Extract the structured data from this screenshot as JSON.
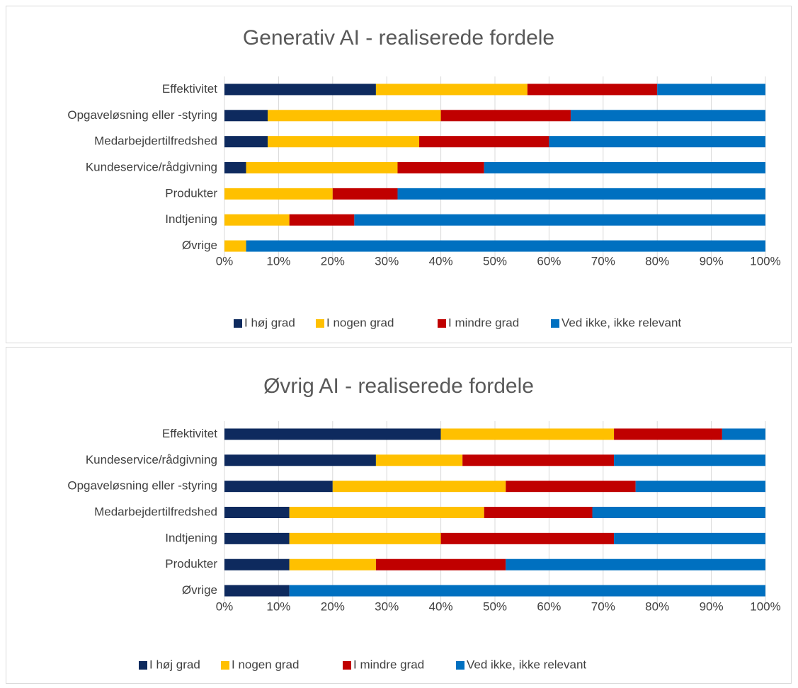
{
  "chart_data": [
    {
      "type": "bar",
      "orientation": "horizontal",
      "stacked": true,
      "title": "Generativ AI - realiserede fordele",
      "categories": [
        "Effektivitet",
        "Opgaveløsning eller -styring",
        "Medarbejdertilfredshed",
        "Kundeservice/rådgivning",
        "Produkter",
        "Indtjening",
        "Øvrige"
      ],
      "series": [
        {
          "name": "I høj grad",
          "color": "#0e2a5e",
          "values": [
            28,
            8,
            8,
            4,
            0,
            0,
            0
          ]
        },
        {
          "name": "I nogen grad",
          "color": "#ffc000",
          "values": [
            28,
            32,
            28,
            28,
            20,
            12,
            4
          ]
        },
        {
          "name": "I mindre grad",
          "color": "#c00000",
          "values": [
            24,
            24,
            24,
            16,
            12,
            12,
            0
          ]
        },
        {
          "name": "Ved ikke, ikke relevant",
          "color": "#0070c0",
          "values": [
            20,
            36,
            40,
            52,
            68,
            76,
            96
          ]
        }
      ],
      "xlim": [
        0,
        100
      ],
      "xticks": [
        {
          "value": 0,
          "label": "0%"
        },
        {
          "value": 10,
          "label": "10%"
        },
        {
          "value": 20,
          "label": "20%"
        },
        {
          "value": 30,
          "label": "30%"
        },
        {
          "value": 40,
          "label": "40%"
        },
        {
          "value": 50,
          "label": "50%"
        },
        {
          "value": 60,
          "label": "60%"
        },
        {
          "value": 70,
          "label": "70%"
        },
        {
          "value": 80,
          "label": "80%"
        },
        {
          "value": 90,
          "label": "90%"
        },
        {
          "value": 100,
          "label": "100%"
        }
      ],
      "grid": true,
      "legend": "bottom"
    },
    {
      "type": "bar",
      "orientation": "horizontal",
      "stacked": true,
      "title": "Øvrig AI - realiserede fordele",
      "categories": [
        "Effektivitet",
        "Kundeservice/rådgivning",
        "Opgaveløsning eller -styring",
        "Medarbejdertilfredshed",
        "Indtjening",
        "Produkter",
        "Øvrige"
      ],
      "series": [
        {
          "name": "I høj grad",
          "color": "#0e2a5e",
          "values": [
            40,
            28,
            20,
            12,
            12,
            12,
            12
          ]
        },
        {
          "name": "I nogen grad",
          "color": "#ffc000",
          "values": [
            32,
            16,
            32,
            36,
            28,
            16,
            0
          ]
        },
        {
          "name": "I mindre grad",
          "color": "#c00000",
          "values": [
            20,
            28,
            24,
            20,
            32,
            24,
            0
          ]
        },
        {
          "name": "Ved ikke, ikke relevant",
          "color": "#0070c0",
          "values": [
            8,
            28,
            24,
            32,
            28,
            48,
            88
          ]
        }
      ],
      "xlim": [
        0,
        100
      ],
      "xticks": [
        {
          "value": 0,
          "label": "0%"
        },
        {
          "value": 10,
          "label": "10%"
        },
        {
          "value": 20,
          "label": "20%"
        },
        {
          "value": 30,
          "label": "30%"
        },
        {
          "value": 40,
          "label": "40%"
        },
        {
          "value": 50,
          "label": "50%"
        },
        {
          "value": 60,
          "label": "60%"
        },
        {
          "value": 70,
          "label": "70%"
        },
        {
          "value": 80,
          "label": "80%"
        },
        {
          "value": 90,
          "label": "90%"
        },
        {
          "value": 100,
          "label": "100%"
        }
      ],
      "grid": true,
      "legend": "bottom"
    }
  ]
}
